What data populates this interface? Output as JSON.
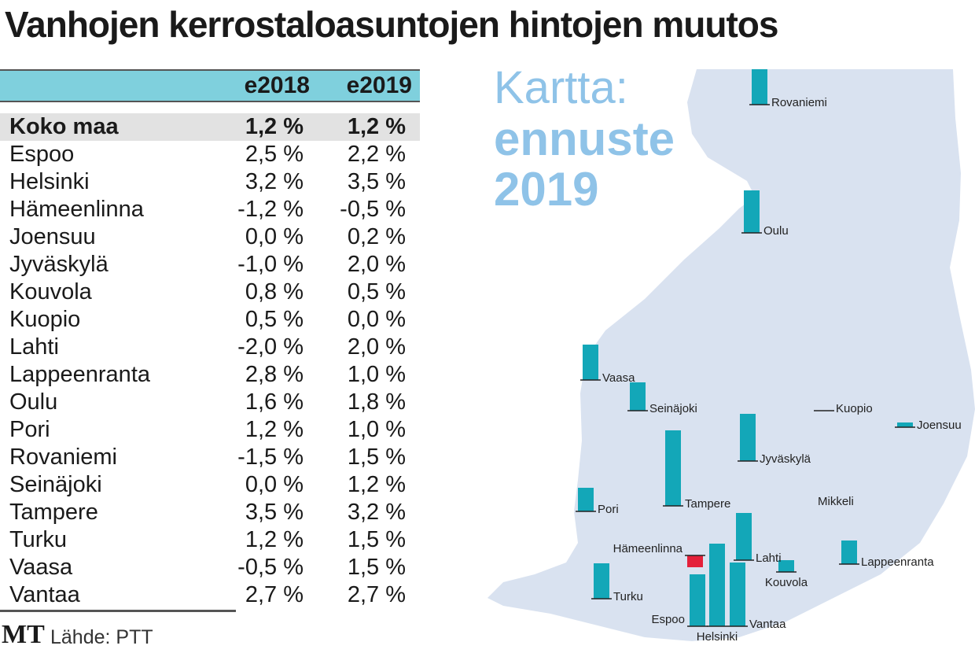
{
  "title": "Vanhojen kerrostaloasuntojen hintojen muutos",
  "table": {
    "columns": [
      "",
      "e2018",
      "e2019"
    ],
    "rows": [
      {
        "name": "Koko maa",
        "e2018": "1,2 %",
        "e2019": "1,2 %"
      },
      {
        "name": "Espoo",
        "e2018": "2,5 %",
        "e2019": "2,2 %"
      },
      {
        "name": "Helsinki",
        "e2018": "3,2 %",
        "e2019": "3,5 %"
      },
      {
        "name": "Hämeenlinna",
        "e2018": "-1,2 %",
        "e2019": "-0,5 %"
      },
      {
        "name": "Joensuu",
        "e2018": "0,0 %",
        "e2019": "0,2 %"
      },
      {
        "name": "Jyväskylä",
        "e2018": "-1,0 %",
        "e2019": "2,0 %"
      },
      {
        "name": "Kouvola",
        "e2018": "0,8 %",
        "e2019": "0,5 %"
      },
      {
        "name": "Kuopio",
        "e2018": "0,5 %",
        "e2019": "0,0 %"
      },
      {
        "name": "Lahti",
        "e2018": "-2,0 %",
        "e2019": "2,0 %"
      },
      {
        "name": "Lappeenranta",
        "e2018": "2,8 %",
        "e2019": "1,0 %"
      },
      {
        "name": "Oulu",
        "e2018": "1,6 %",
        "e2019": "1,8 %"
      },
      {
        "name": "Pori",
        "e2018": "1,2 %",
        "e2019": "1,0 %"
      },
      {
        "name": "Rovaniemi",
        "e2018": "-1,5 %",
        "e2019": "1,5 %"
      },
      {
        "name": "Seinäjoki",
        "e2018": "0,0 %",
        "e2019": "1,2 %"
      },
      {
        "name": "Tampere",
        "e2018": "3,5 %",
        "e2019": "3,2 %"
      },
      {
        "name": "Turku",
        "e2018": "1,2 %",
        "e2019": "1,5 %"
      },
      {
        "name": "Vaasa",
        "e2018": "-0,5 %",
        "e2019": "1,5 %"
      },
      {
        "name": "Vantaa",
        "e2018": "2,7 %",
        "e2019": "2,7 %"
      }
    ]
  },
  "map": {
    "heading_line1": "Kartta:",
    "heading_line2": "ennuste",
    "heading_line3": "2019",
    "extra_label": "Mikkeli",
    "positive_color": "#13a7b8",
    "negative_color": "#e4203a",
    "land_color": "#d9e2f0"
  },
  "footer": {
    "logo": "MT",
    "source": "Lähde: PTT"
  },
  "chart_data": {
    "type": "bar",
    "title": "Kartta: ennuste 2019",
    "categories": [
      "Espoo",
      "Helsinki",
      "Hämeenlinna",
      "Joensuu",
      "Jyväskylä",
      "Kouvola",
      "Kuopio",
      "Lahti",
      "Lappeenranta",
      "Oulu",
      "Pori",
      "Rovaniemi",
      "Seinäjoki",
      "Tampere",
      "Turku",
      "Vaasa",
      "Vantaa"
    ],
    "values": [
      2.2,
      3.5,
      -0.5,
      0.2,
      2.0,
      0.5,
      0.0,
      2.0,
      1.0,
      1.8,
      1.0,
      1.5,
      1.2,
      3.2,
      1.5,
      1.5,
      2.7
    ],
    "unit": "%",
    "xlabel": "",
    "ylabel": ""
  }
}
